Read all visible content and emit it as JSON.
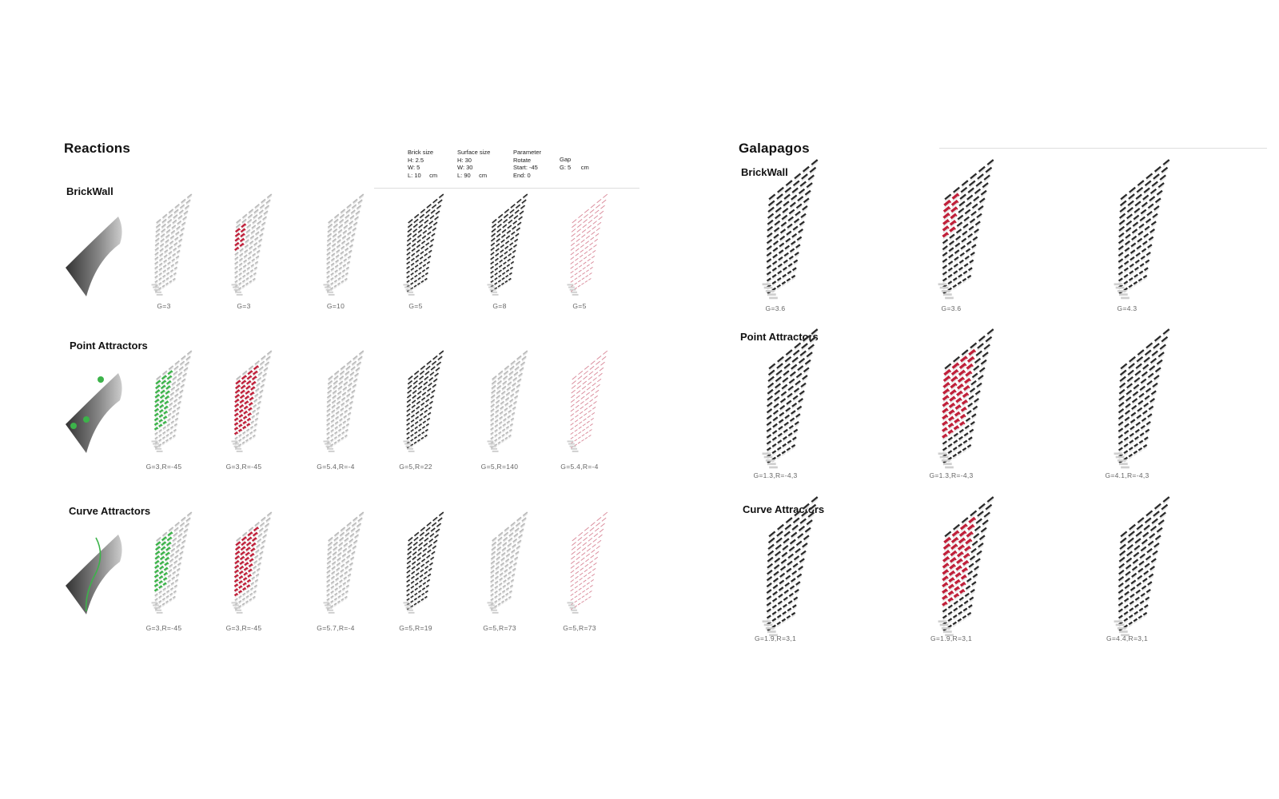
{
  "left": {
    "title": "Reactions",
    "params": {
      "brick": {
        "h": "Brick size",
        "l1": "H: 2.5",
        "l2": "W: 5",
        "l3": "L: 10",
        "unit": "cm"
      },
      "surface": {
        "h": "Surface size",
        "l1": "H: 30",
        "l2": "W: 30",
        "l3": "L: 90",
        "unit": "cm"
      },
      "parameter": {
        "h": "Parameter",
        "l1": "Rotate",
        "l2": "Start: -45",
        "l3": "End:  0"
      },
      "gap": {
        "h": "Gap",
        "l1": "G: 5",
        "unit": "cm"
      }
    },
    "rows": [
      {
        "title": "BrickWall",
        "labels": [
          "G=3",
          "G=3",
          "G=10",
          "G=5",
          "G=8",
          "G=5"
        ]
      },
      {
        "title": "Point Attractors",
        "labels": [
          "G=3,R=-45",
          "G=3,R=-45",
          "G=5.4,R=-4",
          "G=5,R=22",
          "G=5,R=140",
          "G=5.4,R=-4"
        ]
      },
      {
        "title": "Curve Attractors",
        "labels": [
          "G=3,R=-45",
          "G=3,R=-45",
          "G=5.7,R=-4",
          "G=5,R=19",
          "G=5,R=73",
          "G=5,R=73"
        ]
      }
    ]
  },
  "right": {
    "title": "Galapagos",
    "rows": [
      {
        "title": "BrickWall",
        "labels": [
          "G=3.6",
          "G=3.6",
          "G=4.3"
        ]
      },
      {
        "title": "Point Attractors",
        "labels": [
          "G=1.3,R=-4,3",
          "G=1.3,R=-4,3",
          "G=4.1,R=-4,3"
        ]
      },
      {
        "title": "Curve Attractors",
        "labels": [
          "G=1.9,R=3,1",
          "G=1.9,R=3,1",
          "G=4.4,R=3,1"
        ]
      }
    ]
  },
  "colors": {
    "green": "#3cb34a",
    "red": "#c0203a",
    "pink": "#d98a9a",
    "dark": "#2a2a2a"
  }
}
